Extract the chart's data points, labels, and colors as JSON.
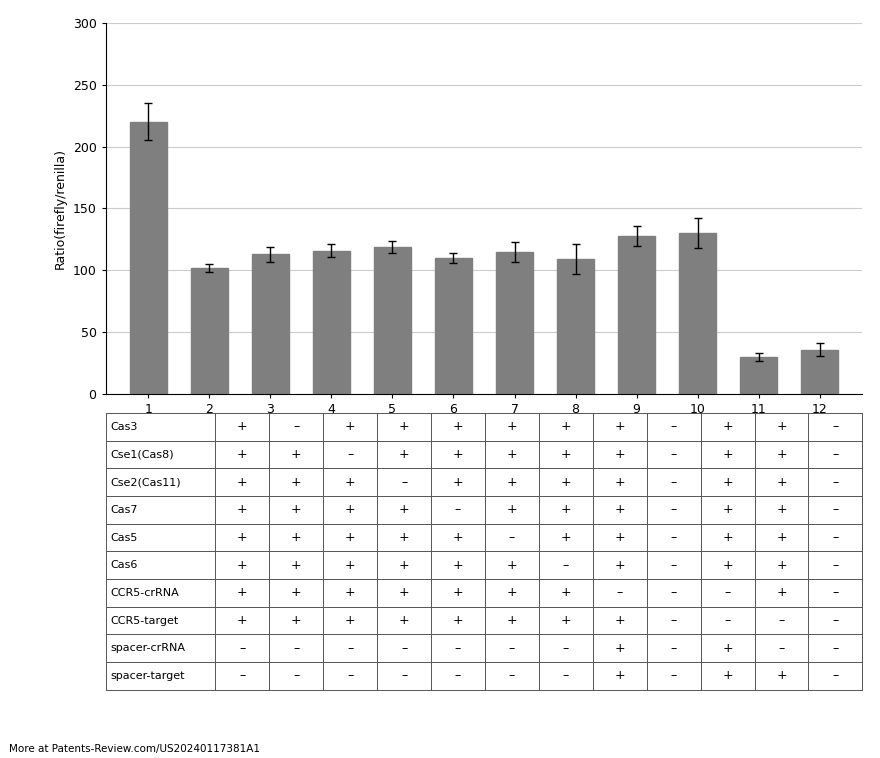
{
  "bar_values": [
    220,
    102,
    113,
    116,
    119,
    110,
    115,
    109,
    128,
    130,
    30,
    36
  ],
  "bar_errors": [
    15,
    3,
    6,
    5,
    5,
    4,
    8,
    12,
    8,
    12,
    3,
    5
  ],
  "bar_color": "#7f7f7f",
  "x_labels": [
    "1",
    "2",
    "3",
    "4",
    "5",
    "6",
    "7",
    "8",
    "9",
    "10",
    "11",
    "12"
  ],
  "ylabel": "Ratio(firefly/renilla)",
  "ylim": [
    0,
    300
  ],
  "yticks": [
    0,
    50,
    100,
    150,
    200,
    250,
    300
  ],
  "row_labels": [
    "Cas3",
    "Cse1(Cas8)",
    "Cse2(Cas11)",
    "Cas7",
    "Cas5",
    "Cas6",
    "CCR5-crRNA",
    "CCR5-target",
    "spacer-crRNA",
    "spacer-target"
  ],
  "table_data": [
    [
      "+",
      "–",
      "+",
      "+",
      "+",
      "+",
      "+",
      "+",
      "–",
      "+",
      "+",
      "–"
    ],
    [
      "+",
      "+",
      "–",
      "+",
      "+",
      "+",
      "+",
      "+",
      "–",
      "+",
      "+",
      "–"
    ],
    [
      "+",
      "+",
      "+",
      "–",
      "+",
      "+",
      "+",
      "+",
      "–",
      "+",
      "+",
      "–"
    ],
    [
      "+",
      "+",
      "+",
      "+",
      "–",
      "+",
      "+",
      "+",
      "–",
      "+",
      "+",
      "–"
    ],
    [
      "+",
      "+",
      "+",
      "+",
      "+",
      "–",
      "+",
      "+",
      "–",
      "+",
      "+",
      "–"
    ],
    [
      "+",
      "+",
      "+",
      "+",
      "+",
      "+",
      "–",
      "+",
      "–",
      "+",
      "+",
      "–"
    ],
    [
      "+",
      "+",
      "+",
      "+",
      "+",
      "+",
      "+",
      "–",
      "–",
      "–",
      "+",
      "–"
    ],
    [
      "+",
      "+",
      "+",
      "+",
      "+",
      "+",
      "+",
      "+",
      "–",
      "–",
      "–",
      "–"
    ],
    [
      "–",
      "–",
      "–",
      "–",
      "–",
      "–",
      "–",
      "+",
      "–",
      "+",
      "–",
      "–"
    ],
    [
      "–",
      "–",
      "–",
      "–",
      "–",
      "–",
      "–",
      "+",
      "–",
      "+",
      "+",
      "–"
    ]
  ],
  "footer_text": "More at Patents-Review.com/US20240117381A1",
  "background_color": "#ffffff",
  "fig_width": 8.8,
  "fig_height": 7.58,
  "dpi": 100
}
